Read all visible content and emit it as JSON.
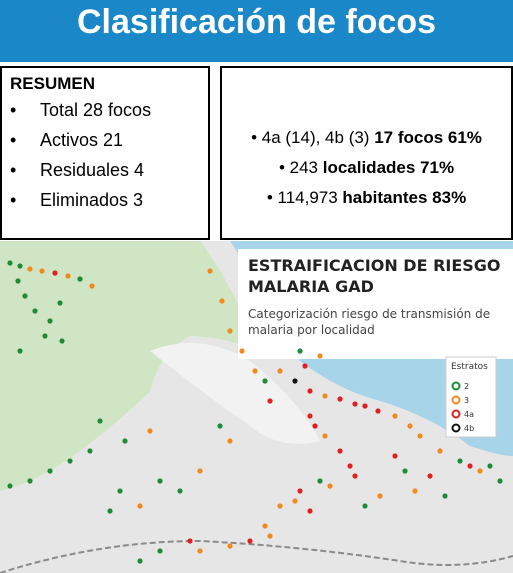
{
  "header": {
    "title": "Clasificación de focos"
  },
  "summary": {
    "heading": "RESUMEN",
    "items": [
      "Total 28 focos",
      "Activos 21",
      "Residuales 4",
      "Eliminados 3"
    ]
  },
  "stats": [
    {
      "text": "4a (14), 4b (3) ",
      "bold": "17 focos 61%"
    },
    {
      "text": "243 ",
      "bold": "localidades 71%"
    },
    {
      "text": "114,973 ",
      "bold": "habitantes 83%"
    }
  ],
  "map": {
    "title_lines": [
      "ESTRAIFICACION DE RIESGO",
      "MALARIA GAD"
    ],
    "subtitle_lines": [
      "Categorización riesgo de transmisión de",
      "malaria por localidad"
    ],
    "legend": {
      "title": "Estratos",
      "items": [
        {
          "label": "2",
          "color": "#1e8a3a"
        },
        {
          "label": "3",
          "color": "#f08a1c"
        },
        {
          "label": "4a",
          "color": "#e02020"
        },
        {
          "label": "4b",
          "color": "#111111"
        }
      ]
    }
  }
}
